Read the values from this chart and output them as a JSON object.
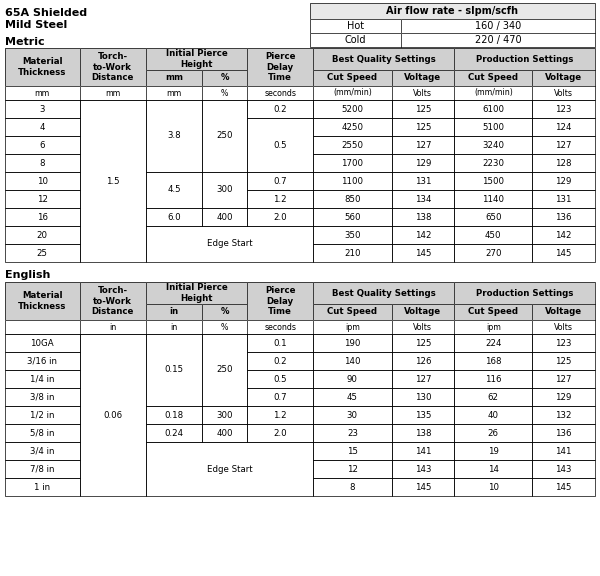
{
  "title_line1": "65A Shielded",
  "title_line2": "Mild Steel",
  "air_flow_title": "Air flow rate - slpm/scfh",
  "air_flow_hot_label": "Hot",
  "air_flow_hot_val": "160 / 340",
  "air_flow_cold_label": "Cold",
  "air_flow_cold_val": "220 / 470",
  "metric_label": "Metric",
  "english_label": "English",
  "hdr_bg": "#d0d0d0",
  "white": "#ffffff",
  "font_size": 6.2,
  "hdr_font_size": 6.2,
  "units_metric": [
    "mm",
    "mm",
    "mm",
    "%",
    "seconds",
    "(mm/min)",
    "Volts",
    "(mm/min)",
    "Volts"
  ],
  "units_english": [
    "",
    "in",
    "in",
    "%",
    "seconds",
    "ipm",
    "Volts",
    "ipm",
    "Volts"
  ],
  "metric_rows": [
    [
      "3",
      "0.2",
      "5200",
      "125",
      "6100",
      "123"
    ],
    [
      "4",
      "",
      "4250",
      "125",
      "5100",
      "124"
    ],
    [
      "6",
      "0.5",
      "2550",
      "127",
      "3240",
      "127"
    ],
    [
      "8",
      "",
      "1700",
      "129",
      "2230",
      "128"
    ],
    [
      "10",
      "0.7",
      "1100",
      "131",
      "1500",
      "129"
    ],
    [
      "12",
      "1.2",
      "850",
      "134",
      "1140",
      "131"
    ],
    [
      "16",
      "2.0",
      "560",
      "138",
      "650",
      "136"
    ],
    [
      "20",
      "",
      "350",
      "142",
      "450",
      "142"
    ],
    [
      "25",
      "",
      "210",
      "145",
      "270",
      "145"
    ]
  ],
  "english_rows": [
    [
      "10GA",
      "0.1",
      "190",
      "125",
      "224",
      "123"
    ],
    [
      "3/16 in",
      "0.2",
      "140",
      "126",
      "168",
      "125"
    ],
    [
      "1/4 in",
      "0.5",
      "90",
      "127",
      "116",
      "127"
    ],
    [
      "3/8 in",
      "0.7",
      "45",
      "130",
      "62",
      "129"
    ],
    [
      "1/2 in",
      "1.2",
      "30",
      "135",
      "40",
      "132"
    ],
    [
      "5/8 in",
      "2.0",
      "23",
      "138",
      "26",
      "136"
    ],
    [
      "3/4 in",
      "",
      "15",
      "141",
      "19",
      "141"
    ],
    [
      "7/8 in",
      "",
      "12",
      "143",
      "14",
      "143"
    ],
    [
      "1 in",
      "",
      "8",
      "145",
      "10",
      "145"
    ]
  ]
}
